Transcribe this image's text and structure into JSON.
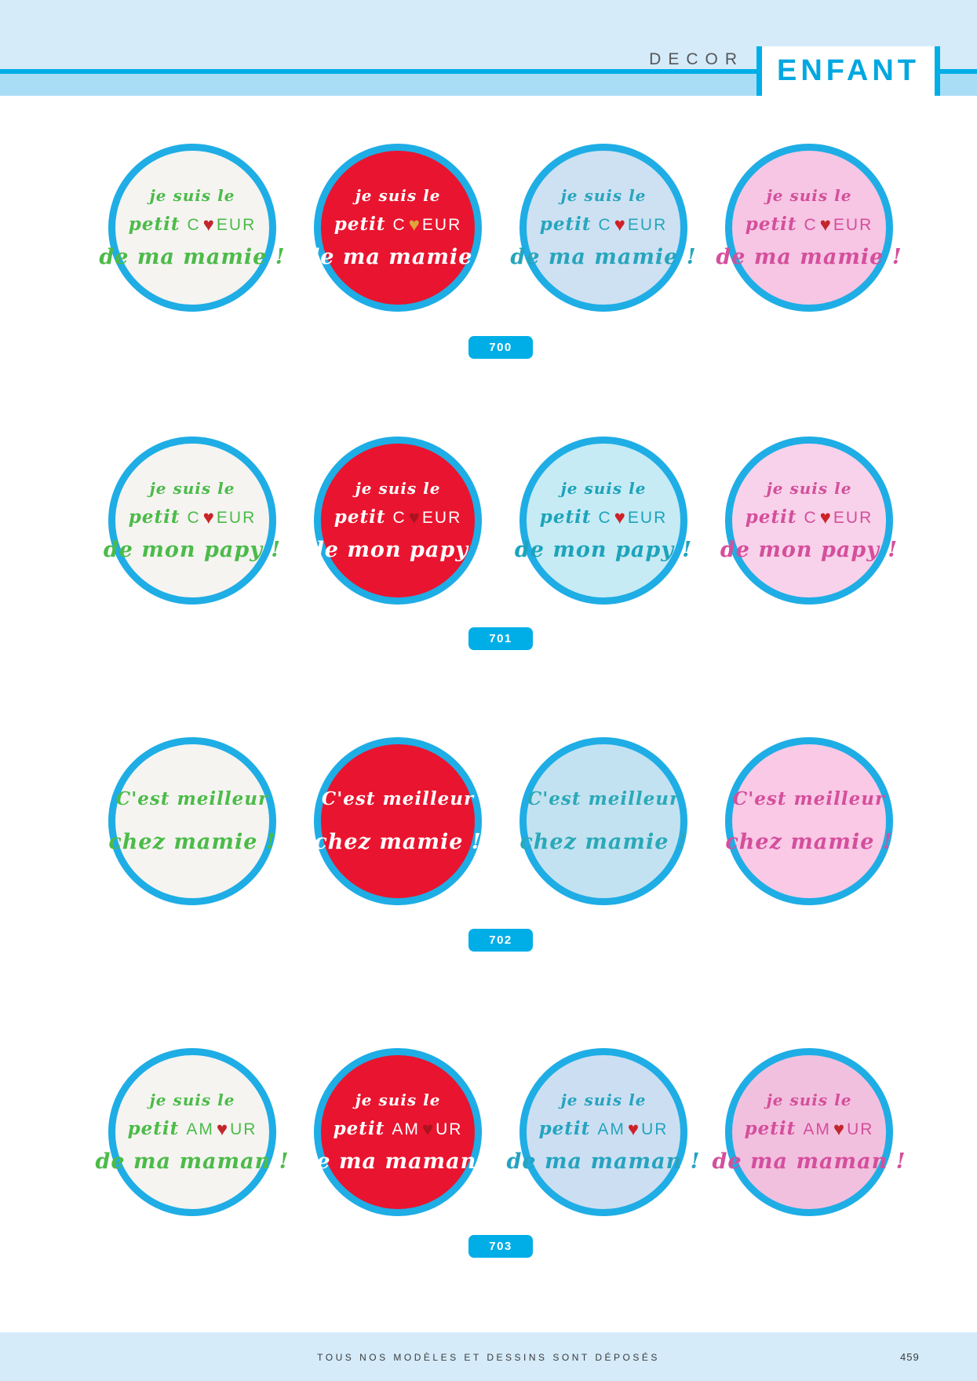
{
  "header": {
    "section_label": "DECOR",
    "title": "ENFANT",
    "accent_blue": "#00aee7"
  },
  "rows": [
    {
      "ref": "700",
      "lines": [
        {
          "type": "script",
          "size": "sm",
          "text": "je suis le"
        },
        {
          "type": "mixed",
          "script": "petit ",
          "caps_pre": "C",
          "heart": "♥",
          "caps_post": "EUR"
        },
        {
          "type": "script",
          "size": "lg",
          "text": "de ma mamie !"
        }
      ],
      "cells": [
        {
          "bg": "#f5f4f1",
          "text": "#4cbb49",
          "heart": "#c1272d"
        },
        {
          "bg": "#e9142f",
          "text": "#ffffff",
          "heart": "#dfa43c"
        },
        {
          "bg": "#cde1f3",
          "text": "#27a5bd",
          "heart": "#cc2229"
        },
        {
          "bg": "#f6c6e4",
          "text": "#d44f9c",
          "heart": "#c1272d"
        }
      ]
    },
    {
      "ref": "701",
      "lines": [
        {
          "type": "script",
          "size": "sm",
          "text": "je suis le"
        },
        {
          "type": "mixed",
          "script": "petit ",
          "caps_pre": "C",
          "heart": "♥",
          "caps_post": "EUR"
        },
        {
          "type": "script",
          "size": "lg",
          "text": "de mon papy !"
        }
      ],
      "cells": [
        {
          "bg": "#f5f4f1",
          "text": "#4cbb49",
          "heart": "#cc2328"
        },
        {
          "bg": "#e9142f",
          "text": "#ffffff",
          "heart": "#a91420"
        },
        {
          "bg": "#c6ebf5",
          "text": "#1da3bb",
          "heart": "#cc2328"
        },
        {
          "bg": "#f8d2ea",
          "text": "#d44f9c",
          "heart": "#cc2328"
        }
      ]
    },
    {
      "ref": "702",
      "lines": [
        {
          "type": "script",
          "size": "md",
          "text": "C'est meilleur"
        },
        {
          "type": "script",
          "size": "lg",
          "text": "chez mamie !"
        }
      ],
      "cells": [
        {
          "bg": "#f5f4f1",
          "text": "#4cbb49",
          "heart": "#c1272d"
        },
        {
          "bg": "#e9142f",
          "text": "#ffffff",
          "heart": "#dfa43c"
        },
        {
          "bg": "#c3e2f1",
          "text": "#2aa9b8",
          "heart": "#cc2229"
        },
        {
          "bg": "#f9c9e6",
          "text": "#d44f9c",
          "heart": "#c1272d"
        }
      ]
    },
    {
      "ref": "703",
      "lines": [
        {
          "type": "script",
          "size": "sm",
          "text": "je suis le"
        },
        {
          "type": "mixed",
          "script": "petit ",
          "caps_pre": "AM",
          "heart": "♥",
          "caps_post": "UR"
        },
        {
          "type": "script",
          "size": "lg",
          "text": "de ma maman !"
        }
      ],
      "cells": [
        {
          "bg": "#f5f4f1",
          "text": "#4cbb49",
          "heart": "#c1272d"
        },
        {
          "bg": "#e9142f",
          "text": "#ffffff",
          "heart": "#a91420"
        },
        {
          "bg": "#ccdff2",
          "text": "#25a3c0",
          "heart": "#cc2229"
        },
        {
          "bg": "#f2c0df",
          "text": "#d44f9c",
          "heart": "#c1272d"
        }
      ]
    }
  ],
  "footer": {
    "notice": "TOUS NOS MODÈLES ET DESSINS SONT DÉPOSÉS",
    "page_number": "459"
  }
}
